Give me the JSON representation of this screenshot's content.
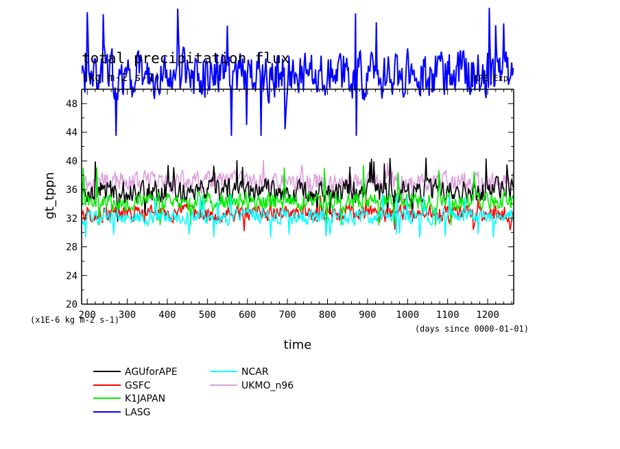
{
  "chart_data": {
    "type": "line",
    "title": "total precipitation flux",
    "title_units": "(kg m-2 s-1)",
    "title_right": "APE_Exp",
    "ylabel": "gt_tppn",
    "xlabel": "time",
    "y_unit_note": "(x1E-6 kg m-2 s-1)",
    "x_unit_note": "(days since 0000-01-01)",
    "xlim": [
      186,
      1265
    ],
    "ylim": [
      20,
      50
    ],
    "x_ticks": [
      200,
      300,
      400,
      500,
      600,
      700,
      800,
      900,
      1000,
      1100,
      1200
    ],
    "y_ticks": [
      20,
      24,
      28,
      32,
      36,
      40,
      44,
      48
    ],
    "grid": false,
    "legend_placement": "bottom-left",
    "series": [
      {
        "name": "AGUforAPE",
        "color": "#000000",
        "mean": 35.8,
        "spread": 1.4,
        "peak_max": 40.5,
        "peak_min": 31.5
      },
      {
        "name": "GSFC",
        "color": "#ff0000",
        "mean": 32.6,
        "spread": 1.0,
        "peak_max": 35.5,
        "peak_min": 29.5
      },
      {
        "name": "K1JAPAN",
        "color": "#00ee00",
        "mean": 34.3,
        "spread": 1.1,
        "peak_max": 39.8,
        "peak_min": 31.0
      },
      {
        "name": "LASG",
        "color": "#0000ff",
        "mean": 52.0,
        "spread": 2.8,
        "peak_max": 61.5,
        "peak_min": 43.5
      },
      {
        "name": "NCAR",
        "color": "#00ffff",
        "mean": 32.2,
        "spread": 0.9,
        "peak_max": 35.5,
        "peak_min": 29.3
      },
      {
        "name": "UKMO_n96",
        "color": "#dda0dd",
        "mean": 37.0,
        "spread": 1.2,
        "peak_max": 40.3,
        "peak_min": 33.5
      }
    ]
  }
}
